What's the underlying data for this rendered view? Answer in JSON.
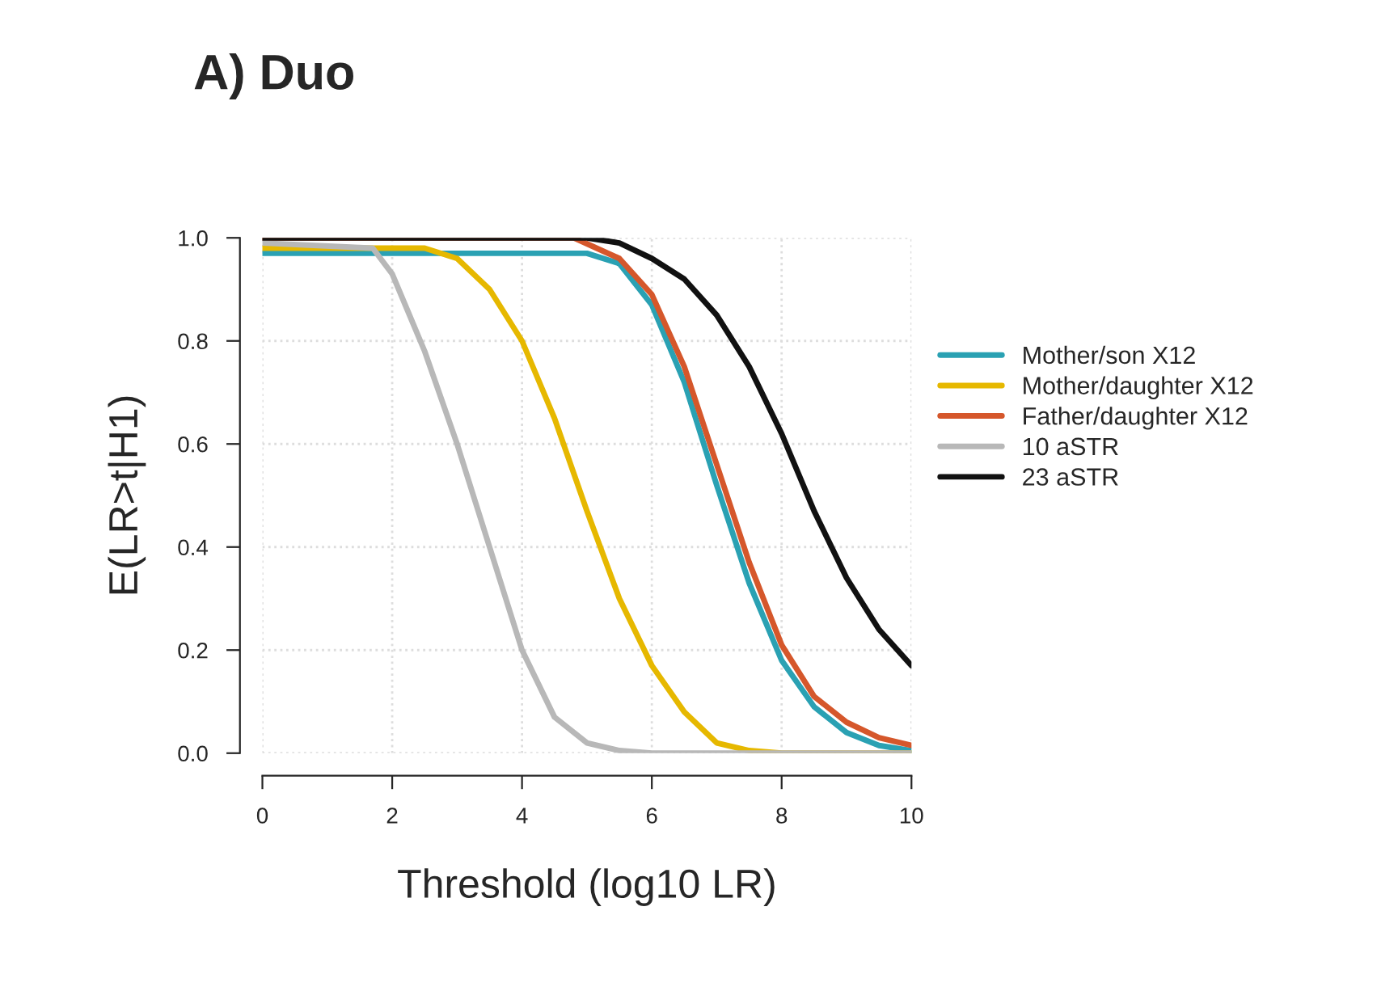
{
  "chart_data": {
    "type": "line",
    "title": "A) Duo",
    "xlabel": "Threshold (log10 LR)",
    "ylabel": "E(LR>t|H1)",
    "xlim": [
      0,
      10
    ],
    "xticks": [
      0,
      2,
      4,
      6,
      8,
      10
    ],
    "ylim": [
      0,
      1
    ],
    "yticks": [
      {
        "value": 0,
        "label": "0.0"
      },
      {
        "value": 0.2,
        "label": "0.2"
      },
      {
        "value": 0.4,
        "label": "0.4"
      },
      {
        "value": 0.6,
        "label": "0.6"
      },
      {
        "value": 0.8,
        "label": "0.8"
      },
      {
        "value": 1,
        "label": "1.0"
      }
    ],
    "grid": true,
    "legend": "right",
    "marker": "none",
    "line_style": "solid",
    "series": [
      {
        "name": "Mother/son X12",
        "color": "#2aa1b3",
        "x": [
          0,
          5,
          5.5,
          6,
          6.5,
          7,
          7.5,
          8,
          8.5,
          9,
          9.5,
          10
        ],
        "values": [
          0.97,
          0.97,
          0.95,
          0.87,
          0.72,
          0.52,
          0.33,
          0.18,
          0.09,
          0.04,
          0.015,
          0.005
        ]
      },
      {
        "name": "Mother/daughter X12",
        "color": "#e6b800",
        "x": [
          0,
          2.5,
          3,
          3.5,
          4,
          4.5,
          5,
          5.5,
          6,
          6.5,
          7,
          7.5,
          8,
          10
        ],
        "values": [
          0.98,
          0.98,
          0.96,
          0.9,
          0.8,
          0.65,
          0.47,
          0.3,
          0.17,
          0.08,
          0.02,
          0.005,
          0,
          0
        ]
      },
      {
        "name": "Father/daughter X12",
        "color": "#d5572b",
        "x": [
          0,
          4.8,
          5.5,
          6,
          6.5,
          7,
          7.5,
          8,
          8.5,
          9,
          9.5,
          10
        ],
        "values": [
          1.0,
          1.0,
          0.96,
          0.89,
          0.75,
          0.56,
          0.37,
          0.21,
          0.11,
          0.06,
          0.03,
          0.015
        ]
      },
      {
        "name": "10 aSTR",
        "color": "#b8b8b8",
        "x": [
          0,
          1.7,
          2,
          2.5,
          3,
          3.5,
          4,
          4.5,
          5,
          5.5,
          6,
          10
        ],
        "values": [
          0.99,
          0.98,
          0.93,
          0.78,
          0.6,
          0.4,
          0.2,
          0.07,
          0.02,
          0.005,
          0,
          0
        ]
      },
      {
        "name": "23 aSTR",
        "color": "#111111",
        "x": [
          0,
          5,
          5.5,
          6,
          6.5,
          7,
          7.5,
          8,
          8.5,
          9,
          9.5,
          10
        ],
        "values": [
          1.0,
          1.0,
          0.99,
          0.96,
          0.92,
          0.85,
          0.75,
          0.62,
          0.47,
          0.34,
          0.24,
          0.17
        ]
      }
    ]
  }
}
